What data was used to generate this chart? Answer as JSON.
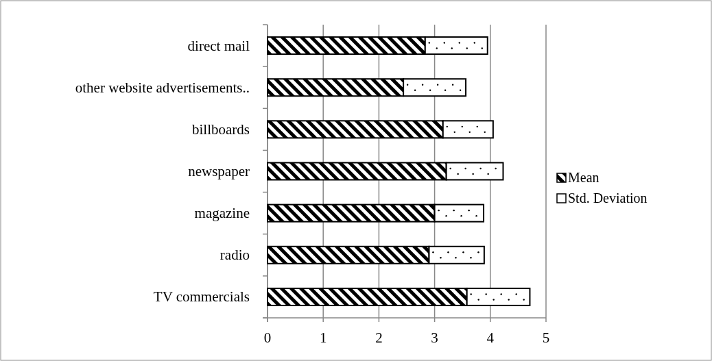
{
  "chart_data": {
    "type": "bar",
    "orientation": "horizontal",
    "stacked": true,
    "categories": [
      "direct mail",
      "other website advertisements..",
      "billboards",
      "newspaper",
      "magazine",
      "radio",
      "TV commercials"
    ],
    "series": [
      {
        "name": "Mean",
        "color": "#000000",
        "values": [
          2.83,
          2.44,
          3.15,
          3.21,
          3.0,
          2.9,
          3.58
        ]
      },
      {
        "name": "Std. Deviation",
        "color": "#ffffff",
        "values": [
          1.12,
          1.12,
          0.9,
          1.02,
          0.88,
          0.99,
          1.13
        ]
      }
    ],
    "xlim": [
      0,
      5
    ],
    "xticks": [
      0,
      1,
      2,
      3,
      4,
      5
    ],
    "grid": "x",
    "legend": "right"
  }
}
